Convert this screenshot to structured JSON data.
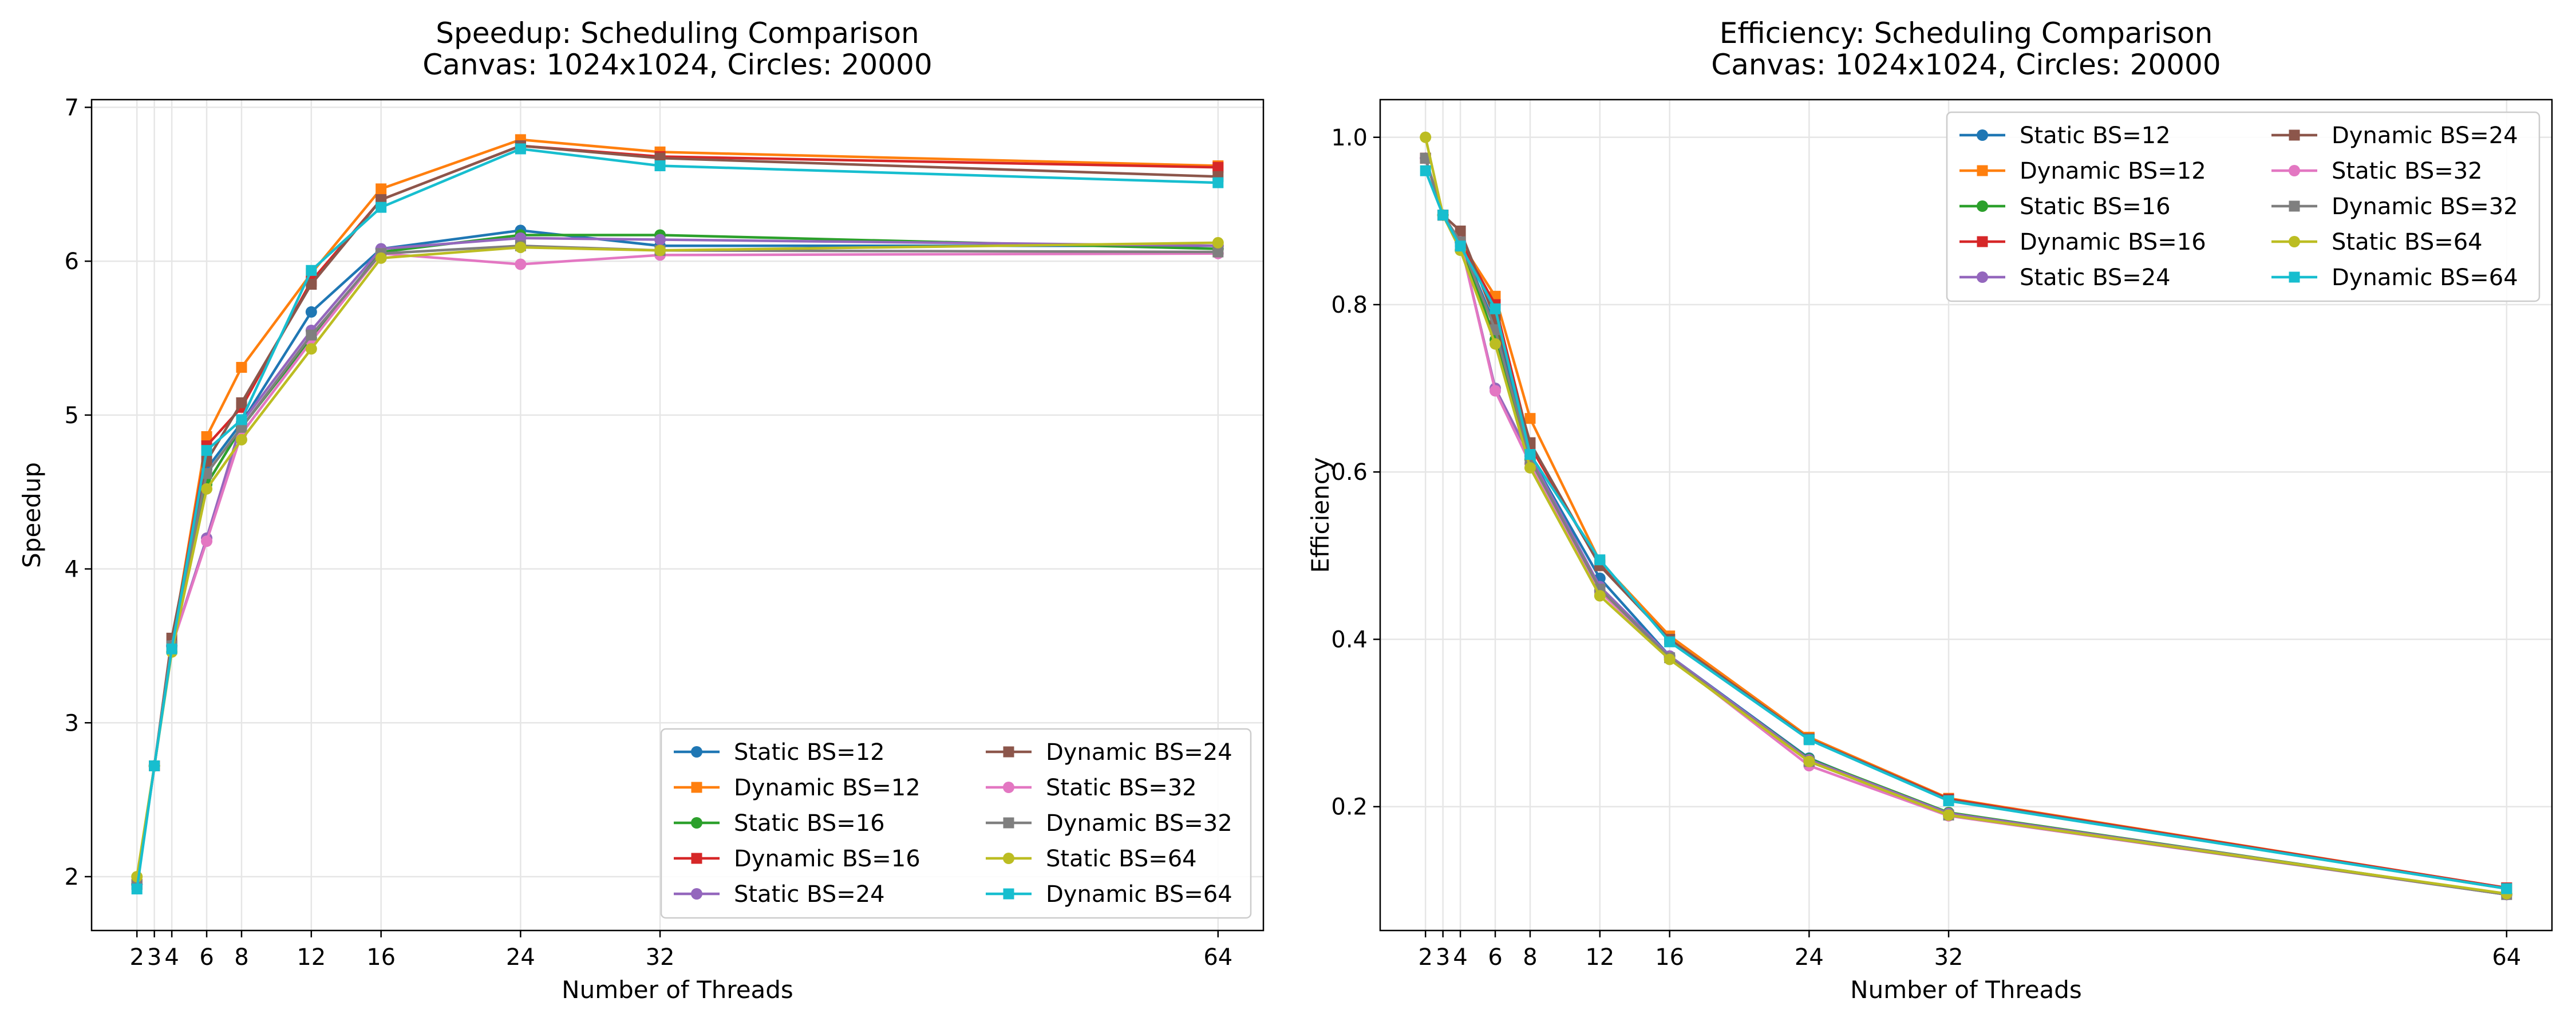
{
  "chart_data": [
    {
      "type": "line",
      "title": "Speedup: Scheduling Comparison",
      "subtitle": "Canvas: 1024x1024, Circles: 20000",
      "xlabel": "Number of Threads",
      "ylabel": "Speedup",
      "x": [
        2,
        3,
        4,
        6,
        8,
        12,
        16,
        24,
        32,
        64
      ],
      "xticks": [
        2,
        3,
        4,
        6,
        8,
        12,
        16,
        24,
        32,
        64
      ],
      "yticks": [
        2,
        3,
        4,
        5,
        6,
        7
      ],
      "ylim": [
        1.65,
        7.05
      ],
      "xlim": [
        -0.6,
        66.6
      ],
      "grid": true,
      "legend": {
        "placement": "lower-right",
        "columns": 2
      },
      "series": [
        {
          "name": "Static BS=12",
          "color": "#1f77b4",
          "marker": "circle",
          "values": [
            1.95,
            2.72,
            3.5,
            4.65,
            4.95,
            5.67,
            6.08,
            6.2,
            6.1,
            6.1
          ]
        },
        {
          "name": "Dynamic BS=12",
          "color": "#ff7f0e",
          "marker": "square",
          "values": [
            1.95,
            2.72,
            3.5,
            4.86,
            5.31,
            5.92,
            6.47,
            6.79,
            6.71,
            6.62
          ]
        },
        {
          "name": "Static BS=16",
          "color": "#2ca02c",
          "marker": "circle",
          "values": [
            1.95,
            2.72,
            3.5,
            4.55,
            4.92,
            5.5,
            6.06,
            6.17,
            6.17,
            6.08
          ]
        },
        {
          "name": "Dynamic BS=16",
          "color": "#d62728",
          "marker": "square",
          "values": [
            1.95,
            2.72,
            3.5,
            4.8,
            5.05,
            5.87,
            6.4,
            6.75,
            6.68,
            6.61
          ]
        },
        {
          "name": "Static BS=24",
          "color": "#9467bd",
          "marker": "circle",
          "values": [
            1.95,
            2.72,
            3.5,
            4.2,
            4.95,
            5.55,
            6.08,
            6.15,
            6.14,
            6.1
          ]
        },
        {
          "name": "Dynamic BS=24",
          "color": "#8c564b",
          "marker": "square",
          "values": [
            1.95,
            2.72,
            3.55,
            4.7,
            5.08,
            5.85,
            6.4,
            6.75,
            6.67,
            6.55
          ]
        },
        {
          "name": "Static BS=32",
          "color": "#e377c2",
          "marker": "circle",
          "values": [
            1.95,
            2.72,
            3.5,
            4.18,
            4.88,
            5.48,
            6.05,
            5.98,
            6.04,
            6.05
          ]
        },
        {
          "name": "Dynamic BS=32",
          "color": "#7f7f7f",
          "marker": "square",
          "values": [
            1.95,
            2.72,
            3.5,
            4.62,
            4.92,
            5.52,
            6.05,
            6.1,
            6.07,
            6.06
          ]
        },
        {
          "name": "Static BS=64",
          "color": "#bcbd22",
          "marker": "circle",
          "values": [
            2.0,
            2.72,
            3.46,
            4.52,
            4.84,
            5.43,
            6.02,
            6.09,
            6.07,
            6.12
          ]
        },
        {
          "name": "Dynamic BS=64",
          "color": "#17becf",
          "marker": "square",
          "values": [
            1.92,
            2.72,
            3.48,
            4.77,
            4.97,
            5.94,
            6.35,
            6.73,
            6.62,
            6.51
          ]
        }
      ]
    },
    {
      "type": "line",
      "title": "Efficiency: Scheduling Comparison",
      "subtitle": "Canvas: 1024x1024, Circles: 20000",
      "xlabel": "Number of Threads",
      "ylabel": "Efficiency",
      "x": [
        2,
        3,
        4,
        6,
        8,
        12,
        16,
        24,
        32,
        64
      ],
      "xticks": [
        2,
        3,
        4,
        6,
        8,
        12,
        16,
        24,
        32,
        64
      ],
      "yticks": [
        0.2,
        0.4,
        0.6,
        0.8,
        1.0
      ],
      "ytick_labels": [
        "0.2",
        "0.4",
        "0.6",
        "0.8",
        "1.0"
      ],
      "ylim": [
        0.052,
        1.045
      ],
      "xlim": [
        -0.6,
        66.6
      ],
      "grid": true,
      "legend": {
        "placement": "upper-right",
        "columns": 2
      },
      "series": [
        {
          "name": "Static BS=12",
          "color": "#1f77b4",
          "marker": "circle",
          "values": [
            0.975,
            0.907,
            0.875,
            0.775,
            0.619,
            0.473,
            0.38,
            0.258,
            0.19,
            0.095
          ]
        },
        {
          "name": "Dynamic BS=12",
          "color": "#ff7f0e",
          "marker": "square",
          "values": [
            0.975,
            0.907,
            0.875,
            0.81,
            0.664,
            0.493,
            0.404,
            0.283,
            0.21,
            0.103
          ]
        },
        {
          "name": "Static BS=16",
          "color": "#2ca02c",
          "marker": "circle",
          "values": [
            0.975,
            0.907,
            0.875,
            0.758,
            0.615,
            0.458,
            0.379,
            0.257,
            0.193,
            0.095
          ]
        },
        {
          "name": "Dynamic BS=16",
          "color": "#d62728",
          "marker": "square",
          "values": [
            0.975,
            0.907,
            0.875,
            0.8,
            0.631,
            0.489,
            0.4,
            0.281,
            0.209,
            0.103
          ]
        },
        {
          "name": "Static BS=24",
          "color": "#9467bd",
          "marker": "circle",
          "values": [
            0.975,
            0.907,
            0.875,
            0.7,
            0.619,
            0.463,
            0.38,
            0.256,
            0.192,
            0.095
          ]
        },
        {
          "name": "Dynamic BS=24",
          "color": "#8c564b",
          "marker": "square",
          "values": [
            0.975,
            0.907,
            0.888,
            0.783,
            0.635,
            0.488,
            0.4,
            0.281,
            0.208,
            0.102
          ]
        },
        {
          "name": "Static BS=32",
          "color": "#e377c2",
          "marker": "circle",
          "values": [
            0.975,
            0.907,
            0.875,
            0.697,
            0.61,
            0.457,
            0.378,
            0.249,
            0.189,
            0.095
          ]
        },
        {
          "name": "Dynamic BS=32",
          "color": "#7f7f7f",
          "marker": "square",
          "values": [
            0.975,
            0.907,
            0.875,
            0.77,
            0.615,
            0.46,
            0.378,
            0.254,
            0.19,
            0.095
          ]
        },
        {
          "name": "Static BS=64",
          "color": "#bcbd22",
          "marker": "circle",
          "values": [
            1.0,
            0.907,
            0.865,
            0.753,
            0.605,
            0.452,
            0.376,
            0.254,
            0.19,
            0.096
          ]
        },
        {
          "name": "Dynamic BS=64",
          "color": "#17becf",
          "marker": "square",
          "values": [
            0.96,
            0.907,
            0.87,
            0.795,
            0.621,
            0.495,
            0.397,
            0.28,
            0.207,
            0.102
          ]
        }
      ]
    }
  ]
}
